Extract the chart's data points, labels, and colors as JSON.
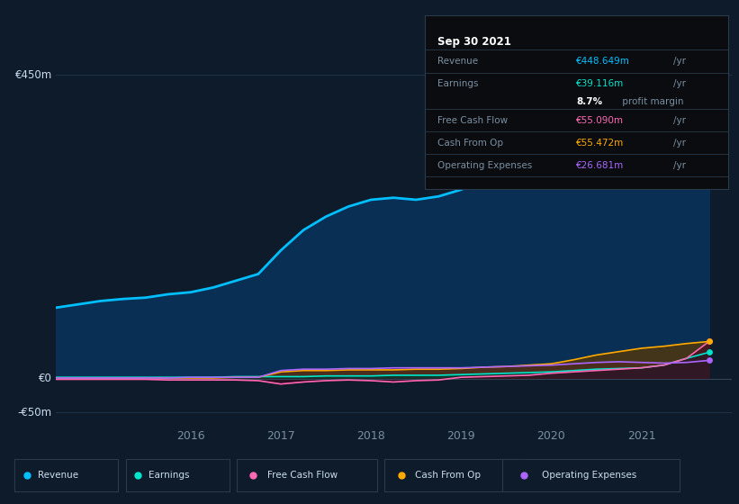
{
  "bg_color": "#0d1b2a",
  "plot_bg_color": "#0d1b2a",
  "chart_fill_color": "#0f2235",
  "grid_color": "#1c2e3e",
  "text_color": "#7a8fa0",
  "ylim": [
    -70,
    490
  ],
  "yticks": [
    -50,
    0,
    450
  ],
  "ytick_labels": [
    "-€50m",
    "€0",
    "€450m"
  ],
  "series": {
    "revenue": {
      "color": "#00bfff",
      "fill_color": "#0a2f55",
      "label": "Revenue"
    },
    "earnings": {
      "color": "#00e5cc",
      "label": "Earnings"
    },
    "fcf": {
      "color": "#ff69b4",
      "label": "Free Cash Flow"
    },
    "cashfromop": {
      "color": "#ffaa00",
      "label": "Cash From Op"
    },
    "opex": {
      "color": "#aa66ff",
      "label": "Operating Expenses"
    }
  },
  "x_dates": [
    2014.5,
    2014.75,
    2015.0,
    2015.25,
    2015.5,
    2015.75,
    2016.0,
    2016.25,
    2016.5,
    2016.75,
    2017.0,
    2017.25,
    2017.5,
    2017.75,
    2018.0,
    2018.25,
    2018.5,
    2018.75,
    2019.0,
    2019.25,
    2019.5,
    2019.75,
    2020.0,
    2020.25,
    2020.5,
    2020.75,
    2021.0,
    2021.25,
    2021.5,
    2021.75
  ],
  "revenue_data": [
    105,
    110,
    115,
    118,
    120,
    125,
    128,
    135,
    145,
    155,
    190,
    220,
    240,
    255,
    265,
    268,
    265,
    270,
    280,
    295,
    310,
    325,
    360,
    380,
    370,
    365,
    370,
    390,
    420,
    448
  ],
  "earnings_data": [
    2,
    2,
    2,
    2,
    2,
    2,
    2,
    2,
    3,
    3,
    3,
    3,
    4,
    4,
    4,
    5,
    5,
    5,
    6,
    7,
    8,
    9,
    10,
    12,
    14,
    15,
    16,
    20,
    30,
    39
  ],
  "fcf_data": [
    -1,
    -1,
    -1,
    -1,
    -1,
    -2,
    -2,
    -2,
    -2,
    -3,
    -8,
    -5,
    -3,
    -2,
    -3,
    -5,
    -3,
    -2,
    2,
    3,
    4,
    5,
    8,
    10,
    12,
    14,
    16,
    20,
    30,
    55
  ],
  "cashfromop_data": [
    1,
    1,
    1,
    1,
    1,
    1,
    1,
    1,
    2,
    2,
    10,
    12,
    12,
    13,
    13,
    13,
    14,
    14,
    15,
    17,
    18,
    20,
    22,
    28,
    35,
    40,
    45,
    48,
    52,
    55
  ],
  "opex_data": [
    1,
    1,
    1,
    1,
    1,
    1,
    2,
    2,
    2,
    2,
    12,
    14,
    14,
    15,
    15,
    16,
    16,
    16,
    16,
    17,
    18,
    19,
    20,
    22,
    24,
    25,
    24,
    23,
    24,
    27
  ],
  "info_box": {
    "date": "Sep 30 2021",
    "revenue_val": "€448.649m",
    "earnings_val": "€39.116m",
    "profit_margin": "8.7%",
    "fcf_val": "€55.090m",
    "cashfromop_val": "€55.472m",
    "opex_val": "€26.681m"
  },
  "xtick_positions": [
    2015.5,
    2016,
    2017,
    2018,
    2019,
    2020,
    2021
  ],
  "xtick_labels": [
    "",
    "2016",
    "2017",
    "2018",
    "2019",
    "2020",
    "2021"
  ],
  "xlim": [
    2014.5,
    2022.0
  ]
}
